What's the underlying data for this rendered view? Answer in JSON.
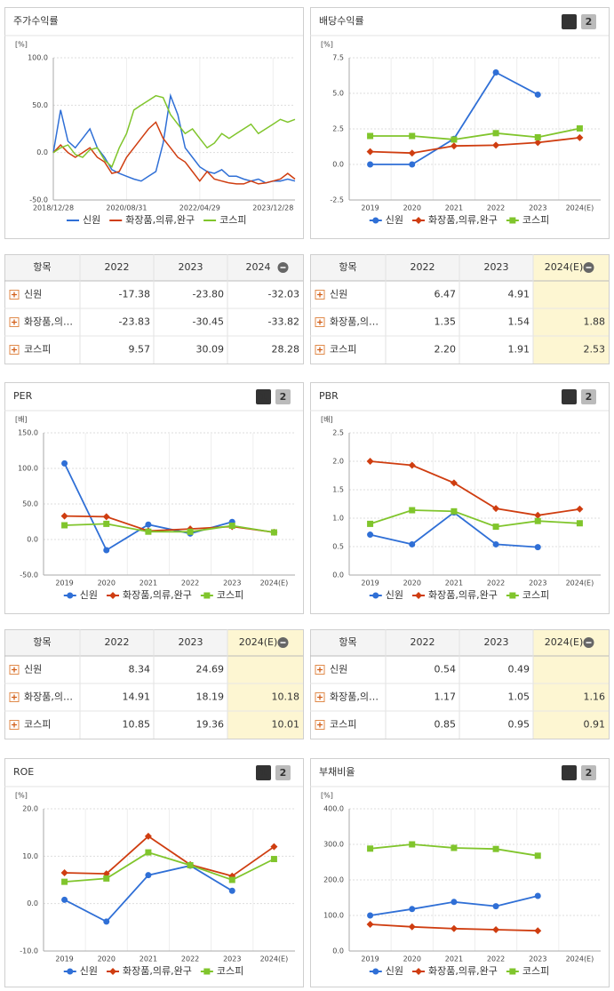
{
  "tab_labels": [
    "1",
    "2"
  ],
  "chart_data": [
    {
      "type": "line",
      "title": "주가수익률",
      "unit": "[%]",
      "categories": [
        "2018/12/28",
        null,
        null,
        null,
        null,
        null,
        null,
        null,
        null,
        null,
        "2020/08/31",
        null,
        null,
        null,
        null,
        null,
        null,
        null,
        null,
        null,
        "2022/04/29",
        null,
        null,
        null,
        null,
        null,
        null,
        null,
        null,
        null,
        "2023/12/28",
        null,
        null,
        null
      ],
      "ylim": [
        -50,
        100
      ],
      "yticks": [
        {
          "value": -50,
          "label": "-50.0"
        },
        {
          "value": 0,
          "label": "0.0"
        },
        {
          "value": 50,
          "label": "50.0"
        },
        {
          "value": 100,
          "label": "100.0"
        }
      ],
      "grid": true,
      "series": [
        {
          "name": "신원",
          "color": "#2f6fd6",
          "values": [
            0,
            45,
            12,
            5,
            15,
            25,
            5,
            -5,
            -18,
            -22,
            -25,
            -28,
            -30,
            -25,
            -20,
            10,
            60,
            40,
            5,
            -5,
            -15,
            -20,
            -22,
            -18,
            -25,
            -25,
            -28,
            -30,
            -28,
            -32,
            -30,
            -30,
            -28,
            -30
          ]
        },
        {
          "name": "화장품,의류,완구",
          "color": "#cf3d10",
          "values": [
            0,
            8,
            0,
            -5,
            0,
            5,
            -5,
            -10,
            -22,
            -20,
            -5,
            5,
            15,
            25,
            32,
            15,
            5,
            -5,
            -10,
            -20,
            -30,
            -20,
            -28,
            -30,
            -32,
            -33,
            -33,
            -30,
            -33,
            -32,
            -30,
            -28,
            -22,
            -28
          ]
        },
        {
          "name": "코스피",
          "color": "#80c52c",
          "values": [
            0,
            5,
            8,
            -2,
            -5,
            3,
            5,
            -8,
            -15,
            5,
            20,
            45,
            50,
            55,
            60,
            58,
            40,
            30,
            20,
            25,
            15,
            5,
            10,
            20,
            15,
            20,
            25,
            30,
            20,
            25,
            30,
            35,
            32,
            35
          ]
        }
      ]
    },
    {
      "type": "line",
      "title": "배당수익률",
      "unit": "[%]",
      "tabs": true,
      "categories": [
        "2019",
        "2020",
        "2021",
        "2022",
        "2023",
        "2024(E)"
      ],
      "ylim": [
        -2.5,
        7.5
      ],
      "yticks": [
        -2.5,
        {
          "value": 0,
          "label": "0.0"
        },
        2.5,
        {
          "value": 5,
          "label": "5.0"
        },
        7.5
      ],
      "grid": true,
      "series": [
        {
          "name": "신원",
          "color": "#2f6fd6",
          "marker": "circle",
          "values": [
            0,
            0,
            1.8,
            6.47,
            4.91,
            null
          ]
        },
        {
          "name": "화장품,의류,완구",
          "color": "#cf3d10",
          "marker": "diamond",
          "values": [
            0.9,
            0.8,
            1.3,
            1.35,
            1.54,
            1.88
          ]
        },
        {
          "name": "코스피",
          "color": "#80c52c",
          "marker": "square",
          "values": [
            2.0,
            2.0,
            1.75,
            2.2,
            1.91,
            2.53
          ]
        }
      ]
    },
    {
      "type": "line",
      "title": "PER",
      "unit": "[배]",
      "tabs": true,
      "categories": [
        "2019",
        "2020",
        "2021",
        "2022",
        "2023",
        "2024(E)"
      ],
      "ylim": [
        -50,
        150
      ],
      "yticks": [
        {
          "value": -50,
          "label": "-50.0"
        },
        {
          "value": 0,
          "label": "0.0"
        },
        {
          "value": 50,
          "label": "50.0"
        },
        {
          "value": 100,
          "label": "100.0"
        },
        {
          "value": 150,
          "label": "150.0"
        }
      ],
      "grid": true,
      "series": [
        {
          "name": "신원",
          "color": "#2f6fd6",
          "marker": "circle",
          "values": [
            107,
            -15,
            21,
            8.34,
            24.69,
            null
          ]
        },
        {
          "name": "화장품,의류,완구",
          "color": "#cf3d10",
          "marker": "diamond",
          "values": [
            33,
            32,
            12,
            14.91,
            18.19,
            10.18
          ]
        },
        {
          "name": "코스피",
          "color": "#80c52c",
          "marker": "square",
          "values": [
            20,
            22,
            11,
            10.85,
            19.36,
            10.01
          ]
        }
      ]
    },
    {
      "type": "line",
      "title": "PBR",
      "unit": "[배]",
      "tabs": true,
      "categories": [
        "2019",
        "2020",
        "2021",
        "2022",
        "2023",
        "2024(E)"
      ],
      "ylim": [
        0,
        2.5
      ],
      "yticks": [
        {
          "value": 0,
          "label": "0.0"
        },
        0.5,
        {
          "value": 1,
          "label": "1.0"
        },
        1.5,
        {
          "value": 2,
          "label": "2.0"
        },
        2.5
      ],
      "grid": true,
      "series": [
        {
          "name": "신원",
          "color": "#2f6fd6",
          "marker": "circle",
          "values": [
            0.71,
            0.54,
            1.1,
            0.54,
            0.49,
            null
          ]
        },
        {
          "name": "화장품,의류,완구",
          "color": "#cf3d10",
          "marker": "diamond",
          "values": [
            2.0,
            1.93,
            1.62,
            1.17,
            1.05,
            1.16
          ]
        },
        {
          "name": "코스피",
          "color": "#80c52c",
          "marker": "square",
          "values": [
            0.9,
            1.14,
            1.12,
            0.85,
            0.95,
            0.91
          ]
        }
      ]
    },
    {
      "type": "line",
      "title": "ROE",
      "unit": "[%]",
      "tabs": true,
      "categories": [
        "2019",
        "2020",
        "2021",
        "2022",
        "2023",
        "2024(E)"
      ],
      "ylim": [
        -10,
        20
      ],
      "yticks": [
        {
          "value": -10,
          "label": "-10.0"
        },
        {
          "value": 0,
          "label": "0.0"
        },
        {
          "value": 10,
          "label": "10.0"
        },
        {
          "value": 20,
          "label": "20.0"
        }
      ],
      "grid": true,
      "series": [
        {
          "name": "신원",
          "color": "#2f6fd6",
          "marker": "circle",
          "values": [
            0.8,
            -3.8,
            6,
            8,
            2.7,
            null
          ]
        },
        {
          "name": "화장품,의류,완구",
          "color": "#cf3d10",
          "marker": "diamond",
          "values": [
            6.5,
            6.3,
            14.2,
            8.2,
            5.8,
            12
          ]
        },
        {
          "name": "코스피",
          "color": "#80c52c",
          "marker": "square",
          "values": [
            4.6,
            5.3,
            10.8,
            8.1,
            5,
            9.4
          ]
        }
      ]
    },
    {
      "type": "line",
      "title": "부채비율",
      "unit": "[%]",
      "tabs": true,
      "categories": [
        "2019",
        "2020",
        "2021",
        "2022",
        "2023",
        "2024(E)"
      ],
      "ylim": [
        0,
        400
      ],
      "yticks": [
        {
          "value": 0,
          "label": "0.0"
        },
        {
          "value": 100,
          "label": "100.0"
        },
        {
          "value": 200,
          "label": "200.0"
        },
        {
          "value": 300,
          "label": "300.0"
        },
        {
          "value": 400,
          "label": "400.0"
        }
      ],
      "grid": true,
      "series": [
        {
          "name": "신원",
          "color": "#2f6fd6",
          "marker": "circle",
          "values": [
            100,
            118,
            138,
            126,
            155,
            null
          ]
        },
        {
          "name": "화장품,의류,완구",
          "color": "#cf3d10",
          "marker": "diamond",
          "values": [
            75,
            68,
            63,
            60,
            57,
            null
          ]
        },
        {
          "name": "코스피",
          "color": "#80c52c",
          "marker": "square",
          "values": [
            288,
            300,
            290,
            287,
            268,
            null
          ]
        }
      ]
    }
  ],
  "tables": [
    {
      "header": [
        "항목",
        "2022",
        "2023",
        "2024"
      ],
      "rows": [
        [
          "신원",
          "-17.38",
          "-23.80",
          "-32.03"
        ],
        [
          "화장품,의…",
          "-23.83",
          "-30.45",
          "-33.82"
        ],
        [
          "코스피",
          "9.57",
          "30.09",
          "28.28"
        ]
      ]
    },
    {
      "header": [
        "항목",
        "2022",
        "2023",
        "2024(E)"
      ],
      "highlight_color": "#fdf6d2",
      "rows": [
        [
          "신원",
          "6.47",
          "4.91",
          null
        ],
        [
          "화장품,의…",
          "1.35",
          "1.54",
          "1.88"
        ],
        [
          "코스피",
          "2.20",
          "1.91",
          "2.53"
        ]
      ]
    },
    {
      "header": [
        "항목",
        "2022",
        "2023",
        "2024(E)"
      ],
      "highlight_color": "#fdf6d2",
      "rows": [
        [
          "신원",
          "8.34",
          "24.69",
          null
        ],
        [
          "화장품,의…",
          "14.91",
          "18.19",
          "10.18"
        ],
        [
          "코스피",
          "10.85",
          "19.36",
          "10.01"
        ]
      ]
    },
    {
      "header": [
        "항목",
        "2022",
        "2023",
        "2024(E)"
      ],
      "highlight_color": "#fdf6d2",
      "rows": [
        [
          "신원",
          "0.54",
          "0.49",
          null
        ],
        [
          "화장품,의…",
          "1.17",
          "1.05",
          "1.16"
        ],
        [
          "코스피",
          "0.85",
          "0.95",
          "0.91"
        ]
      ]
    }
  ]
}
